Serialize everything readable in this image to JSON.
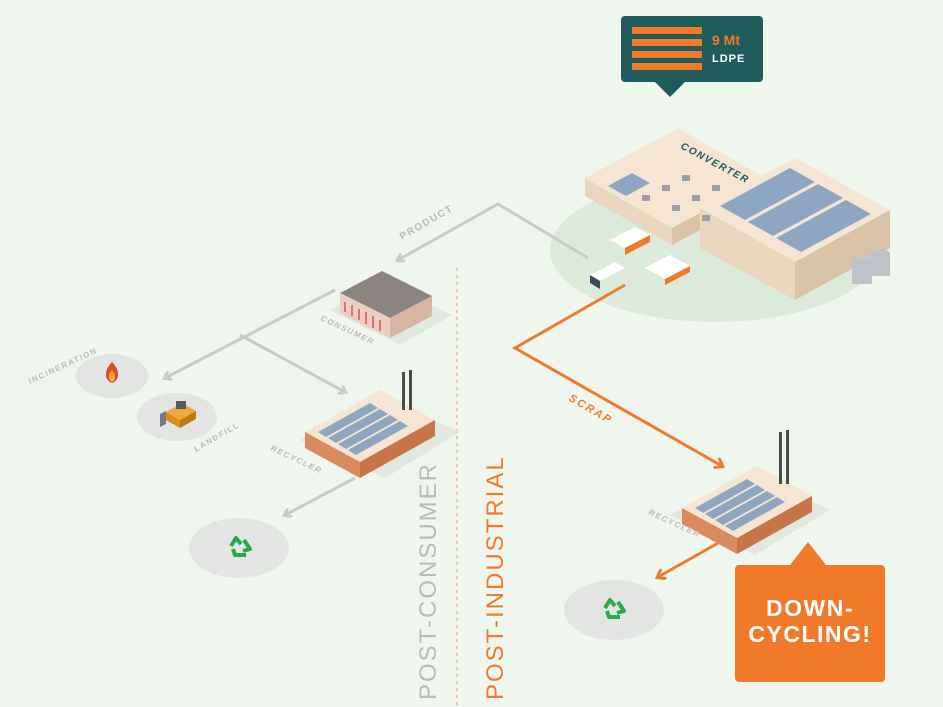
{
  "badge": {
    "amount": "9 Mt",
    "material": "LDPE"
  },
  "buildings": {
    "converter": "CONVERTER",
    "consumer": "CONSUMER",
    "recycler_post_consumer": "RECYCLER",
    "recycler_post_industrial": "RECYCLER"
  },
  "destinations": {
    "incineration": "INCINERATION",
    "landfill": "LANDFILL"
  },
  "flows": {
    "product": "PRODUCT",
    "scrap": "SCRAP"
  },
  "sections": {
    "post_consumer": "POST-CONSUMER",
    "post_industrial": "POST-INDUSTRIAL"
  },
  "callout": {
    "line1": "DOWN-",
    "line2": "CYCLING!"
  },
  "colors": {
    "background": "#eef6ee",
    "teal": "#1f5b5b",
    "orange": "#f07a2a",
    "gray_arrow": "#c9ccc9",
    "recycle_green": "#2aa84a"
  },
  "icons": [
    "fire-icon",
    "bulldozer-icon",
    "recycle-icon",
    "truck-icon"
  ]
}
